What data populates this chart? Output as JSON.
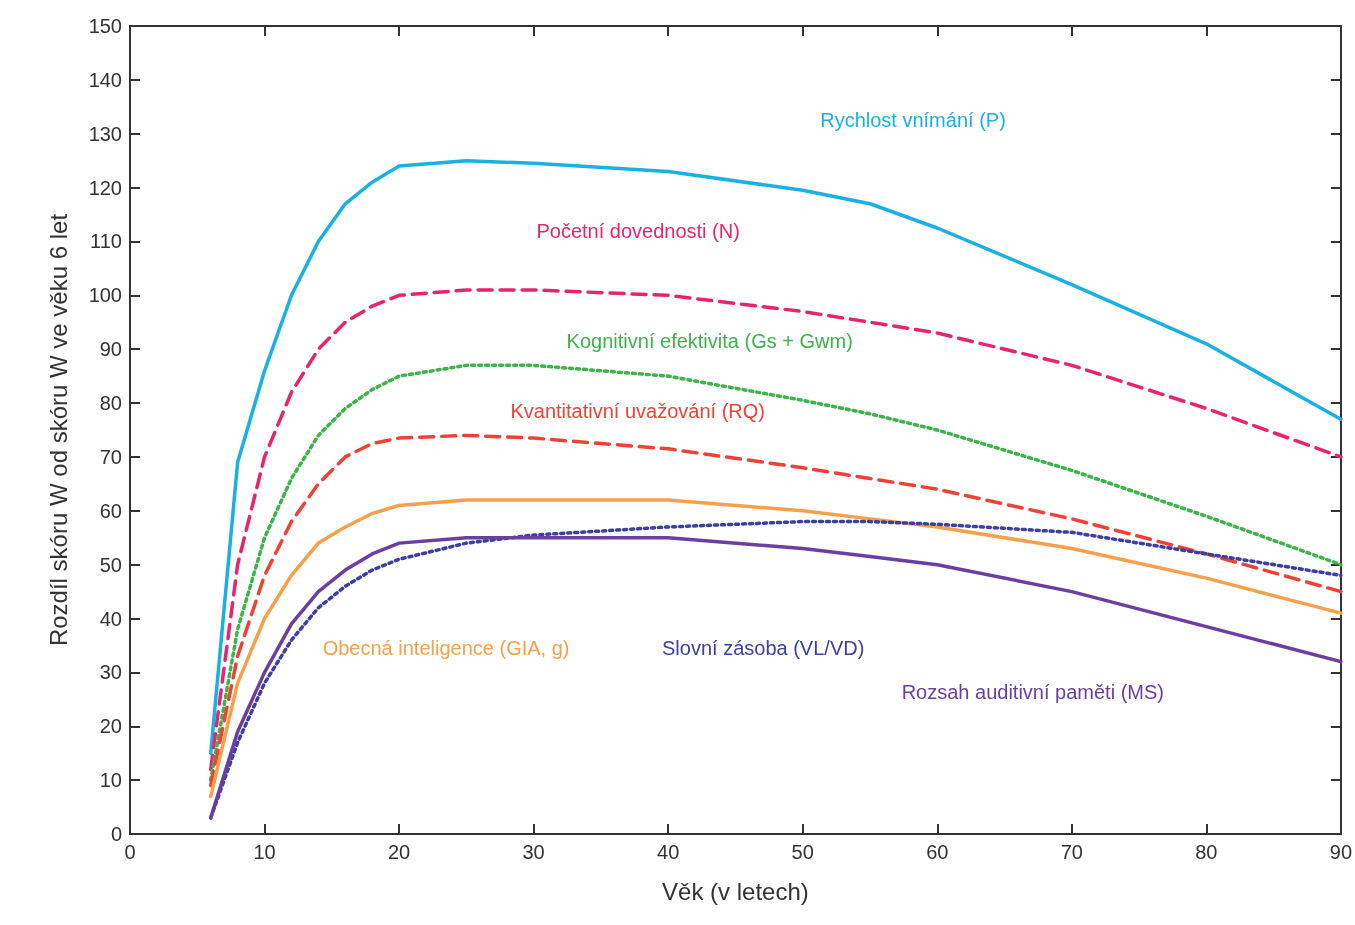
{
  "chart_data": {
    "type": "line",
    "xlabel": "Věk (v letech)",
    "ylabel": "Rozdíl skóru W od skóru W ve věku 6 let",
    "x": [
      6,
      8,
      10,
      12,
      14,
      16,
      18,
      20,
      25,
      30,
      40,
      50,
      55,
      60,
      70,
      80,
      90
    ],
    "xlim": [
      0,
      90
    ],
    "xticks": [
      0,
      10,
      20,
      30,
      40,
      50,
      60,
      70,
      80,
      90
    ],
    "ylim": [
      0,
      150
    ],
    "yticks": [
      0,
      10,
      20,
      30,
      40,
      50,
      60,
      70,
      80,
      90,
      100,
      110,
      120,
      130,
      140,
      150
    ],
    "marker": "none",
    "grid": false,
    "series": [
      {
        "name": "Rychlost vnímání (P)",
        "color": "#1bb0e4",
        "line_style": "solid",
        "values": [
          15,
          69,
          86,
          100,
          110,
          117,
          121,
          124,
          125,
          124.5,
          123,
          119.5,
          117,
          112.5,
          102,
          91,
          77
        ]
      },
      {
        "name": "Početní dovednosti (N)",
        "color": "#e8246e",
        "line_style": "dashed",
        "values": [
          12,
          50,
          70,
          82,
          90,
          95,
          98,
          100,
          101,
          101,
          100,
          97,
          95,
          93,
          87,
          79,
          70
        ]
      },
      {
        "name": "Kognitivní efektivita (Gs + Gwm)",
        "color": "#3cb44a",
        "line_style": "dotted",
        "values": [
          10,
          38,
          55,
          66,
          74,
          79,
          82.5,
          85,
          87,
          87,
          85,
          80.5,
          78,
          75,
          67.5,
          59,
          50
        ]
      },
      {
        "name": "Kvantitativní uvažování (RQ)",
        "color": "#ef4136",
        "line_style": "dashed",
        "values": [
          9,
          33,
          48,
          58,
          65,
          70,
          72.5,
          73.5,
          74,
          73.5,
          71.5,
          68,
          66,
          64,
          58.5,
          52,
          45
        ]
      },
      {
        "name": "Obecná inteligence (GIA, g)",
        "color": "#f7a04a",
        "line_style": "solid",
        "values": [
          7,
          28,
          40,
          48,
          54,
          57,
          59.5,
          61,
          62,
          62,
          62,
          60,
          58.5,
          57,
          53,
          47.5,
          41
        ]
      },
      {
        "name": "Slovní zásoba (VL/VD)",
        "color": "#3b3fa0",
        "line_style": "dotted",
        "values": [
          3,
          17,
          28,
          36,
          42,
          46,
          49,
          51,
          54,
          55.5,
          57,
          58,
          58,
          57.5,
          56,
          52,
          48
        ]
      },
      {
        "name": "Rozsah auditivní paměti (MS)",
        "color": "#6a3fa0",
        "line_style": "solid",
        "values": [
          3,
          19,
          30,
          39,
          45,
          49,
          52,
          54,
          55,
          55,
          55,
          53,
          51.5,
          50,
          45,
          38.5,
          32
        ]
      }
    ]
  }
}
